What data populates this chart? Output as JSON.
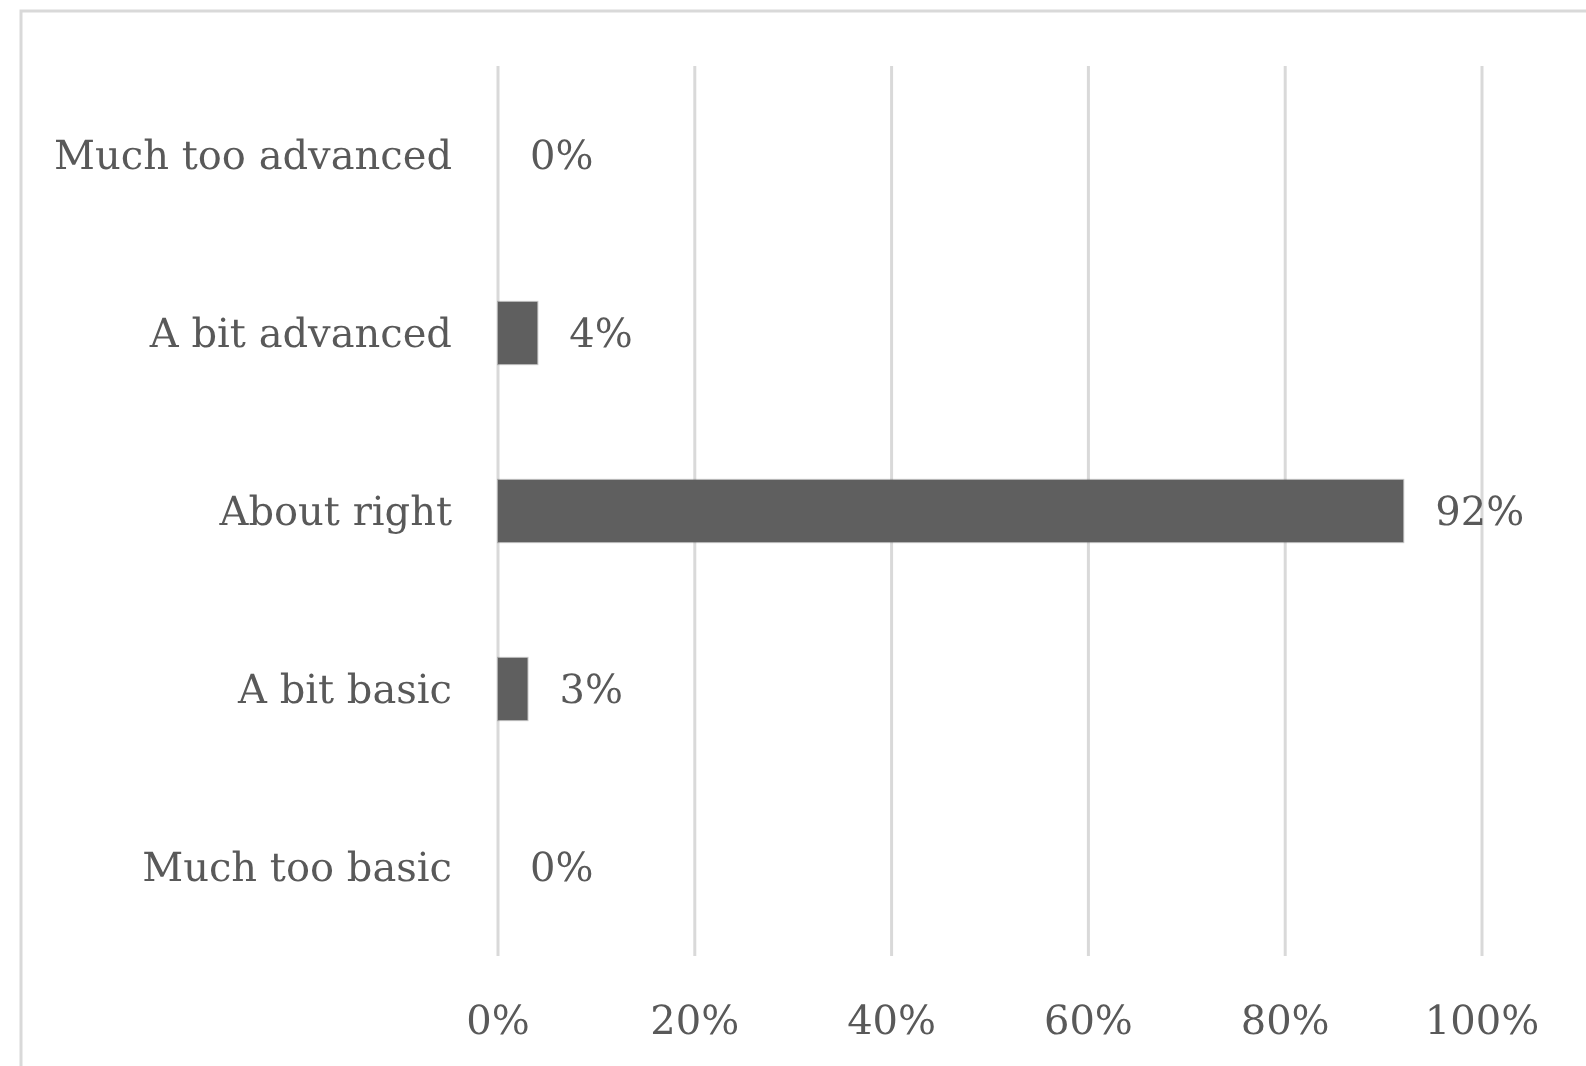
{
  "chart_data": {
    "type": "bar",
    "orientation": "horizontal",
    "categories": [
      "Much too advanced",
      "A bit advanced",
      "About right",
      "A bit basic",
      "Much too basic"
    ],
    "values": [
      0,
      4,
      92,
      3,
      0
    ],
    "color": "#5f5f5f",
    "value_labels": [
      "0%",
      "4%",
      "92%",
      "3%",
      "0%"
    ],
    "xlim": [
      0,
      100
    ],
    "xticks": [
      {
        "value": 0,
        "label": "0%"
      },
      {
        "value": 20,
        "label": "20%"
      },
      {
        "value": 40,
        "label": "40%"
      },
      {
        "value": 60,
        "label": "60%"
      },
      {
        "value": 80,
        "label": "80%"
      },
      {
        "value": 100,
        "label": "100%"
      }
    ],
    "grid": "x"
  }
}
